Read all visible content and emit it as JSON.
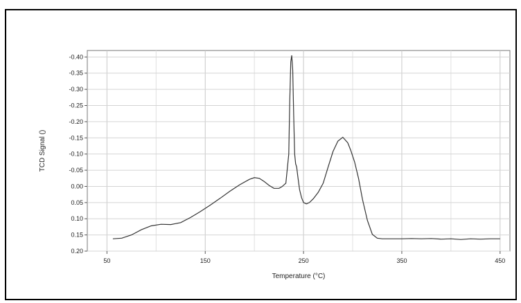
{
  "chart_data": {
    "type": "line",
    "xlabel": "Temperature (°C)",
    "ylabel": "TCD Signal ()",
    "xlim": [
      30,
      460
    ],
    "ylim": [
      0.2,
      -0.42
    ],
    "x_ticks": [
      "50",
      "150",
      "250",
      "350",
      "450"
    ],
    "x_tick_values": [
      50,
      150,
      250,
      350,
      450
    ],
    "y_ticks": [
      "-0.40",
      "-0.35",
      "-0.30",
      "-0.25",
      "-0.20",
      "-0.15",
      "-0.10",
      "-0.05",
      "0.00",
      "0.05",
      "0.10",
      "0.15",
      "0.20"
    ],
    "y_tick_values": [
      -0.4,
      -0.35,
      -0.3,
      -0.25,
      -0.2,
      -0.15,
      -0.1,
      -0.05,
      0.0,
      0.05,
      0.1,
      0.15,
      0.2
    ],
    "grid": true,
    "series_color": "#333333",
    "x": [
      56,
      65,
      75,
      85,
      95,
      105,
      115,
      125,
      135,
      145,
      155,
      165,
      175,
      185,
      195,
      200,
      205,
      210,
      215,
      220,
      225,
      228,
      232,
      235,
      236,
      237,
      238,
      239,
      240,
      241,
      242,
      243,
      244,
      246,
      248,
      250,
      253,
      256,
      260,
      265,
      270,
      275,
      280,
      285,
      290,
      295,
      298,
      302,
      306,
      310,
      315,
      320,
      325,
      330,
      340,
      350,
      360,
      370,
      380,
      390,
      400,
      410,
      420,
      430,
      440,
      450
    ],
    "y": [
      0.162,
      0.16,
      0.15,
      0.134,
      0.122,
      0.117,
      0.118,
      0.112,
      0.096,
      0.078,
      0.058,
      0.037,
      0.015,
      -0.005,
      -0.022,
      -0.027,
      -0.025,
      -0.015,
      -0.003,
      0.006,
      0.006,
      0.001,
      -0.01,
      -0.1,
      -0.26,
      -0.385,
      -0.405,
      -0.36,
      -0.22,
      -0.1,
      -0.07,
      -0.06,
      -0.035,
      0.01,
      0.035,
      0.05,
      0.054,
      0.05,
      0.038,
      0.018,
      -0.01,
      -0.06,
      -0.108,
      -0.14,
      -0.152,
      -0.135,
      -0.112,
      -0.075,
      -0.025,
      0.04,
      0.105,
      0.148,
      0.16,
      0.162,
      0.162,
      0.162,
      0.161,
      0.162,
      0.161,
      0.163,
      0.162,
      0.164,
      0.162,
      0.163,
      0.162,
      0.162
    ]
  }
}
